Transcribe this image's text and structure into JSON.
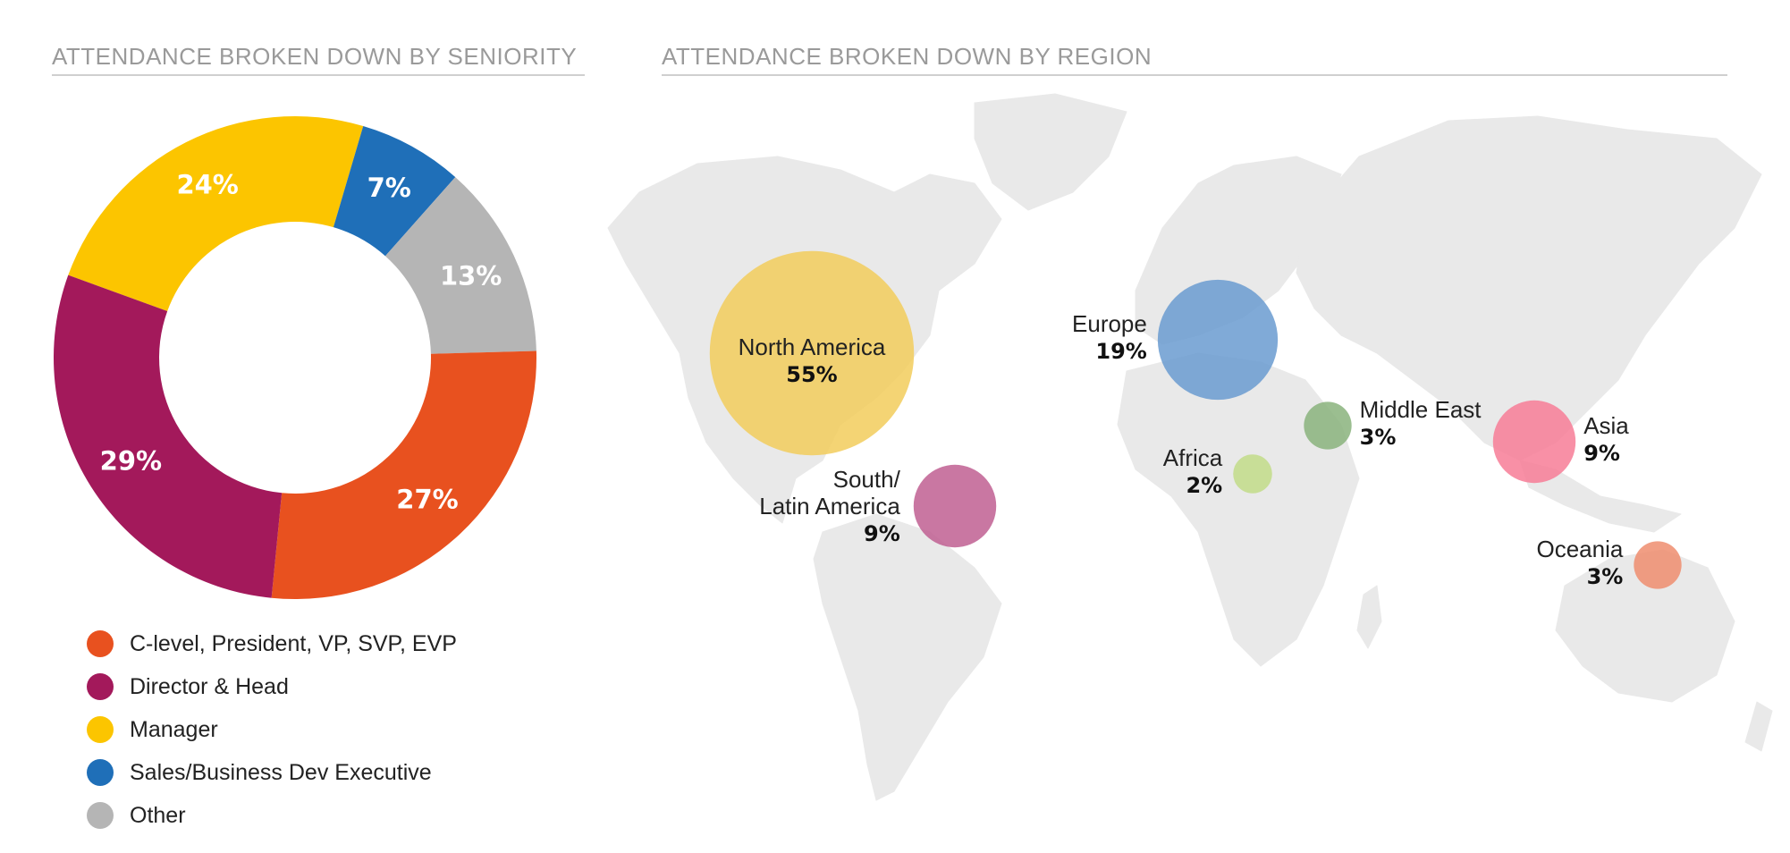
{
  "seniority": {
    "title": "ATTENDANCE BROKEN DOWN BY SENIORITY"
  },
  "region": {
    "title": "ATTENDANCE BROKEN DOWN BY REGION"
  },
  "chart_data": [
    {
      "type": "pie",
      "title": "ATTENDANCE BROKEN DOWN BY SENIORITY",
      "donut": true,
      "legend_position": "bottom",
      "slices": [
        {
          "label": "C-level, President, VP, SVP, EVP",
          "value": 27,
          "display": "27%",
          "color": "#e8511f"
        },
        {
          "label": "Director & Head",
          "value": 29,
          "display": "29%",
          "color": "#a3195b"
        },
        {
          "label": "Manager",
          "value": 24,
          "display": "24%",
          "color": "#fcc500"
        },
        {
          "label": "Sales/Business Dev Executive",
          "value": 7,
          "display": "7%",
          "color": "#1f6fb8"
        },
        {
          "label": "Other",
          "value": 13,
          "display": "13%",
          "color": "#b5b5b5"
        }
      ]
    },
    {
      "type": "scatter",
      "subtype": "bubble-map",
      "title": "ATTENDANCE BROKEN DOWN BY REGION",
      "regions": [
        {
          "name": "North America",
          "value": 55,
          "display": "55%",
          "color": "#f2cd5c"
        },
        {
          "name": "Europe",
          "value": 19,
          "display": "19%",
          "color": "#6a9bd0"
        },
        {
          "name": "Middle East",
          "value": 3,
          "display": "3%",
          "color": "#8ab37c"
        },
        {
          "name": "Africa",
          "value": 2,
          "display": "2%",
          "color": "#c2dc88"
        },
        {
          "name": "Asia",
          "value": 9,
          "display": "9%",
          "color": "#f77c96"
        },
        {
          "name": "South/Latin America",
          "value": 9,
          "display": "9%",
          "color": "#bf5f92"
        },
        {
          "name": "Oceania",
          "value": 3,
          "display": "3%",
          "color": "#ef8d6e"
        }
      ]
    }
  ]
}
